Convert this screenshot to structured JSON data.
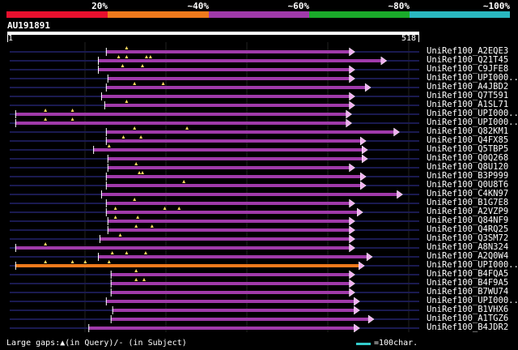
{
  "legend": {
    "segments": [
      {
        "color": "#e8102e"
      },
      {
        "color": "#f07a1c"
      },
      {
        "color": "#a03aaa"
      },
      {
        "color": "#a03aaa"
      },
      {
        "color": "#1aaa2a"
      },
      {
        "color": "#2ab8c0"
      }
    ],
    "labels": [
      "20%",
      "~40%",
      "~60%",
      "~80%",
      "~100%"
    ]
  },
  "query": {
    "id": "AU191891",
    "start_label": "1",
    "end_label": "518",
    "length": 518
  },
  "hits": [
    {
      "label": "UniRef100_A2EQE3",
      "qstart": 124,
      "qend": 430,
      "color": "#a03aaa",
      "gaps": [
        150
      ]
    },
    {
      "label": "UniRef100_Q21T45",
      "qstart": 114,
      "qend": 470,
      "color": "#a03aaa",
      "gaps": [
        140,
        150,
        175,
        180
      ]
    },
    {
      "label": "UniRef100_C9JFE8",
      "qstart": 114,
      "qend": 430,
      "color": "#a03aaa",
      "gaps": [
        145,
        170
      ]
    },
    {
      "label": "UniRef100_UPI000..",
      "qstart": 126,
      "qend": 430,
      "color": "#a03aaa",
      "gaps": []
    },
    {
      "label": "UniRef100_A4JBD2",
      "qstart": 124,
      "qend": 450,
      "color": "#a03aaa",
      "gaps": [
        160,
        196
      ]
    },
    {
      "label": "UniRef100_Q7T591",
      "qstart": 118,
      "qend": 430,
      "color": "#a03aaa",
      "gaps": []
    },
    {
      "label": "UniRef100_A1SL71",
      "qstart": 122,
      "qend": 430,
      "color": "#a03aaa",
      "gaps": [
        150
      ]
    },
    {
      "label": "UniRef100_UPI000..",
      "qstart": 10,
      "qend": 426,
      "color": "#a03aaa",
      "gaps": [
        48,
        82
      ]
    },
    {
      "label": "UniRef100_UPI000..",
      "qstart": 10,
      "qend": 426,
      "color": "#a03aaa",
      "gaps": [
        48,
        82
      ]
    },
    {
      "label": "UniRef100_Q82KM1",
      "qstart": 124,
      "qend": 486,
      "color": "#a03aaa",
      "gaps": [
        160,
        226
      ]
    },
    {
      "label": "UniRef100_Q4FX85",
      "qstart": 124,
      "qend": 444,
      "color": "#a03aaa",
      "gaps": [
        146,
        168
      ]
    },
    {
      "label": "UniRef100_Q5TBP5",
      "qstart": 108,
      "qend": 446,
      "color": "#a03aaa",
      "gaps": [
        128
      ]
    },
    {
      "label": "UniRef100_Q0Q268",
      "qstart": 126,
      "qend": 446,
      "color": "#a03aaa",
      "gaps": []
    },
    {
      "label": "UniRef100_Q8U120",
      "qstart": 126,
      "qend": 430,
      "color": "#a03aaa",
      "gaps": [
        162
      ]
    },
    {
      "label": "UniRef100_B3P999",
      "qstart": 124,
      "qend": 444,
      "color": "#a03aaa",
      "gaps": [
        166,
        170
      ]
    },
    {
      "label": "UniRef100_Q0U8T6",
      "qstart": 124,
      "qend": 444,
      "color": "#a03aaa",
      "gaps": [
        222
      ]
    },
    {
      "label": "UniRef100_C4KN97",
      "qstart": 118,
      "qend": 490,
      "color": "#a03aaa",
      "gaps": []
    },
    {
      "label": "UniRef100_B1G7E8",
      "qstart": 124,
      "qend": 430,
      "color": "#a03aaa",
      "gaps": [
        160
      ]
    },
    {
      "label": "UniRef100_A2VZP9",
      "qstart": 124,
      "qend": 440,
      "color": "#a03aaa",
      "gaps": [
        136,
        198,
        216
      ]
    },
    {
      "label": "UniRef100_Q84NF9",
      "qstart": 126,
      "qend": 430,
      "color": "#a03aaa",
      "gaps": [
        136,
        164
      ]
    },
    {
      "label": "UniRef100_Q4RQ25",
      "qstart": 126,
      "qend": 430,
      "color": "#a03aaa",
      "gaps": [
        162,
        182
      ]
    },
    {
      "label": "UniRef100_Q3SM72",
      "qstart": 116,
      "qend": 430,
      "color": "#a03aaa",
      "gaps": [
        142
      ]
    },
    {
      "label": "UniRef100_A8N324",
      "qstart": 10,
      "qend": 430,
      "color": "#a03aaa",
      "gaps": [
        48
      ]
    },
    {
      "label": "UniRef100_A2Q0W4",
      "qstart": 114,
      "qend": 452,
      "color": "#a03aaa",
      "gaps": [
        132,
        150,
        174
      ]
    },
    {
      "label": "UniRef100_UPI000..",
      "qstart": 10,
      "qend": 442,
      "color": "#f07a1c",
      "gaps": [
        48,
        82,
        98,
        128
      ]
    },
    {
      "label": "UniRef100_B4FQA5",
      "qstart": 130,
      "qend": 430,
      "color": "#a03aaa",
      "gaps": [
        162
      ]
    },
    {
      "label": "UniRef100_B4F9A5",
      "qstart": 130,
      "qend": 430,
      "color": "#a03aaa",
      "gaps": [
        162,
        172
      ]
    },
    {
      "label": "UniRef100_B7WU74",
      "qstart": 130,
      "qend": 430,
      "color": "#a03aaa",
      "gaps": []
    },
    {
      "label": "UniRef100_UPI000..",
      "qstart": 124,
      "qend": 436,
      "color": "#a03aaa",
      "gaps": []
    },
    {
      "label": "UniRef100_B1VHX6",
      "qstart": 132,
      "qend": 436,
      "color": "#a03aaa",
      "gaps": []
    },
    {
      "label": "UniRef100_A1TGZ6",
      "qstart": 130,
      "qend": 454,
      "color": "#a03aaa",
      "gaps": []
    },
    {
      "label": "UniRef100_B4JDR2",
      "qstart": 102,
      "qend": 436,
      "color": "#a03aaa",
      "gaps": []
    }
  ],
  "footer": {
    "gaps_text": "Large gaps:▲(in Query)/- (in Subject)",
    "scale_text": "=100char."
  }
}
